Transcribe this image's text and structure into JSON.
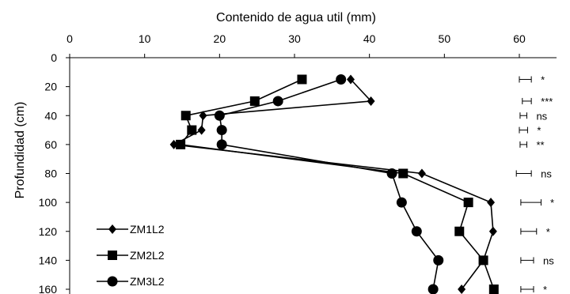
{
  "chart_data": {
    "type": "line",
    "title": "",
    "xlabel": "Contenido de agua util (mm)",
    "ylabel": "Profundidad (cm)",
    "xlim": [
      0,
      60
    ],
    "ylim": [
      0,
      160
    ],
    "y_inverted": true,
    "x_axis_position": "top",
    "xticks": [
      "0",
      "10",
      "20",
      "30",
      "40",
      "50",
      "60"
    ],
    "yticks": [
      "0",
      "20",
      "40",
      "60",
      "80",
      "100",
      "120",
      "140",
      "160"
    ],
    "grid": false,
    "legend_position": "bottom-left",
    "series": [
      {
        "name": "ZM1L2",
        "marker": "diamond",
        "points": [
          [
            37.5,
            15
          ],
          [
            40.2,
            30
          ],
          [
            17.8,
            40
          ],
          [
            17.6,
            50
          ],
          [
            13.9,
            60
          ],
          [
            47.0,
            80
          ],
          [
            56.2,
            100
          ],
          [
            56.5,
            120
          ],
          [
            55.2,
            140
          ],
          [
            52.3,
            160
          ]
        ]
      },
      {
        "name": "ZM2L2",
        "marker": "square",
        "points": [
          [
            31.0,
            15
          ],
          [
            24.7,
            30
          ],
          [
            15.5,
            40
          ],
          [
            16.3,
            50
          ],
          [
            14.8,
            60
          ],
          [
            44.5,
            80
          ],
          [
            53.2,
            100
          ],
          [
            52.0,
            120
          ],
          [
            55.2,
            140
          ],
          [
            56.6,
            160
          ]
        ]
      },
      {
        "name": "ZM3L2",
        "marker": "circle",
        "points": [
          [
            36.2,
            15
          ],
          [
            27.8,
            30
          ],
          [
            20.0,
            40
          ],
          [
            20.3,
            50
          ],
          [
            20.3,
            60
          ],
          [
            43.0,
            80
          ],
          [
            44.3,
            100
          ],
          [
            46.3,
            120
          ],
          [
            49.2,
            140
          ],
          [
            48.5,
            160
          ]
        ]
      }
    ],
    "significance": [
      {
        "depth": 15,
        "label": "*"
      },
      {
        "depth": 30,
        "label": "***"
      },
      {
        "depth": 40,
        "label": "ns"
      },
      {
        "depth": 50,
        "label": "*"
      },
      {
        "depth": 60,
        "label": "**"
      },
      {
        "depth": 80,
        "label": "ns"
      },
      {
        "depth": 100,
        "label": "*"
      },
      {
        "depth": 120,
        "label": "*"
      },
      {
        "depth": 140,
        "label": "ns"
      },
      {
        "depth": 160,
        "label": "*"
      }
    ],
    "error_bars": [
      {
        "depth": 15,
        "x_low": 60.0,
        "x_high": 61.6
      },
      {
        "depth": 30,
        "x_low": 60.4,
        "x_high": 61.6
      },
      {
        "depth": 40,
        "x_low": 60.1,
        "x_high": 61.0
      },
      {
        "depth": 50,
        "x_low": 60.0,
        "x_high": 61.1
      },
      {
        "depth": 60,
        "x_low": 60.1,
        "x_high": 61.0
      },
      {
        "depth": 80,
        "x_low": 59.6,
        "x_high": 61.6
      },
      {
        "depth": 100,
        "x_low": 60.2,
        "x_high": 62.9
      },
      {
        "depth": 120,
        "x_low": 60.2,
        "x_high": 62.3
      },
      {
        "depth": 140,
        "x_low": 60.2,
        "x_high": 61.9
      },
      {
        "depth": 160,
        "x_low": 60.2,
        "x_high": 61.9
      }
    ]
  }
}
